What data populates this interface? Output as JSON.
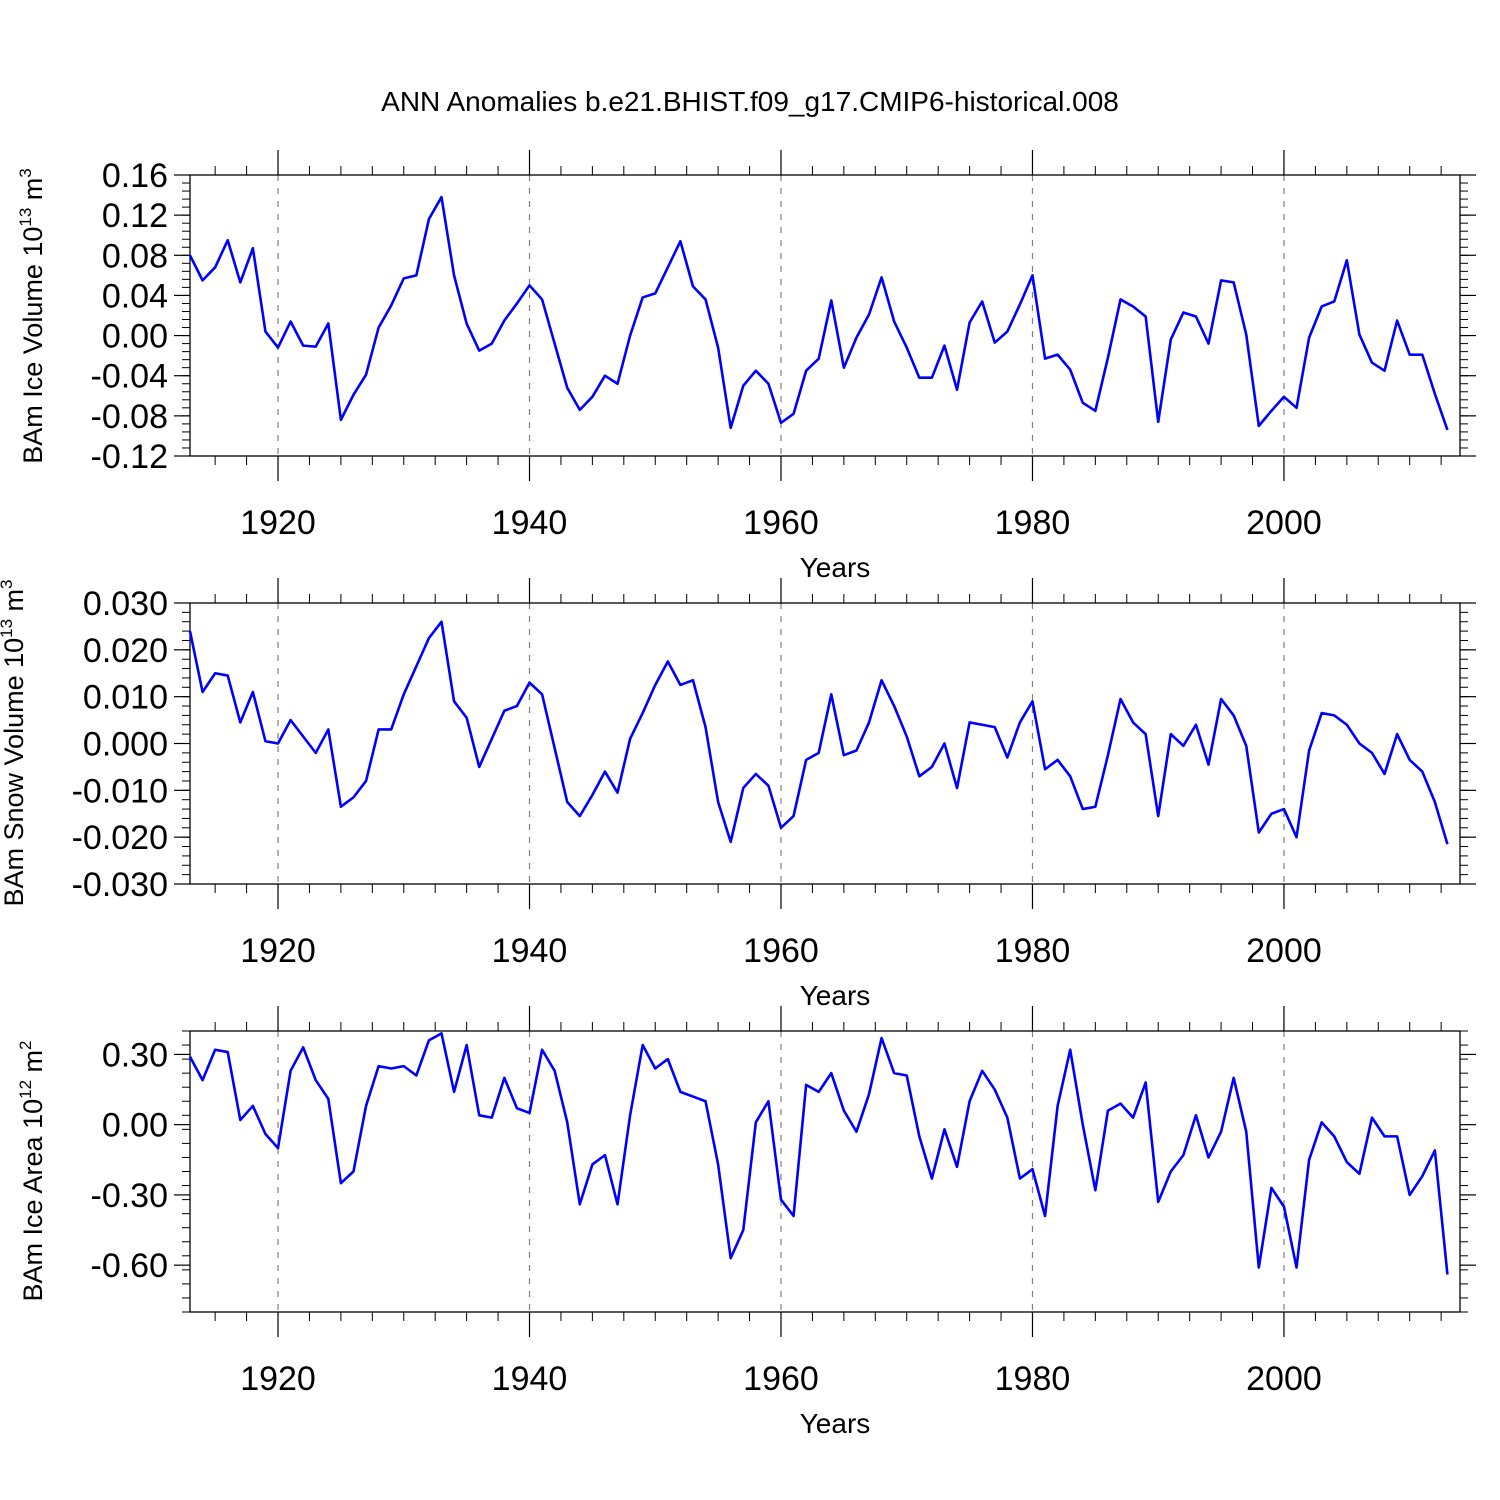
{
  "figure_title": "ANN Anomalies b.e21.BHIST.f09_g17.CMIP6-historical.008",
  "colors": {
    "line": "#0000ff",
    "axes": "#000000",
    "grid": "#808080"
  },
  "chart_data": [
    {
      "type": "line",
      "ylabel": {
        "text": "BAm Ice Volume 10",
        "exponent": "13",
        "unit": " m",
        "unit_exponent": "3"
      },
      "xlabel": "Years",
      "xlim": [
        1913,
        2014
      ],
      "ylim": [
        -0.12,
        0.16
      ],
      "xticks": [
        1920,
        1940,
        1960,
        1980,
        2000
      ],
      "xtick_labels": [
        "1920",
        "1940",
        "1960",
        "1980",
        "2000"
      ],
      "yticks": [
        -0.12,
        -0.08,
        -0.04,
        0.0,
        0.04,
        0.08,
        0.12,
        0.16
      ],
      "ytick_labels": [
        "-0.12",
        "-0.08",
        "-0.04",
        "0.00",
        "0.04",
        "0.08",
        "0.12",
        "0.16"
      ],
      "vgrid": [
        1920,
        1940,
        1960,
        1980,
        2000
      ],
      "x_start": 1913,
      "series": [
        {
          "name": "Ice Volume",
          "values": [
            0.08,
            0.055,
            0.068,
            0.095,
            0.053,
            0.087,
            0.004,
            -0.012,
            0.014,
            -0.01,
            -0.011,
            0.012,
            -0.084,
            -0.059,
            -0.039,
            0.008,
            0.03,
            0.057,
            0.06,
            0.116,
            0.138,
            0.06,
            0.012,
            -0.015,
            -0.008,
            0.015,
            0.032,
            0.05,
            0.036,
            -0.008,
            -0.052,
            -0.074,
            -0.061,
            -0.04,
            -0.048,
            0.0,
            0.038,
            0.042,
            0.068,
            0.094,
            0.049,
            0.036,
            -0.012,
            -0.092,
            -0.05,
            -0.035,
            -0.048,
            -0.087,
            -0.078,
            -0.035,
            -0.023,
            0.035,
            -0.032,
            -0.002,
            0.021,
            0.058,
            0.014,
            -0.012,
            -0.042,
            -0.042,
            -0.01,
            -0.054,
            0.013,
            0.034,
            -0.007,
            0.004,
            0.031,
            0.06,
            -0.023,
            -0.019,
            -0.034,
            -0.067,
            -0.075,
            -0.022,
            0.036,
            0.029,
            0.019,
            -0.086,
            -0.004,
            0.023,
            0.019,
            -0.008,
            0.055,
            0.053,
            0.001,
            -0.09,
            -0.075,
            -0.061,
            -0.072,
            -0.002,
            0.029,
            0.034,
            0.075,
            0.001,
            -0.027,
            -0.035,
            0.015,
            -0.019,
            -0.019,
            -0.058,
            -0.094
          ]
        }
      ]
    },
    {
      "type": "line",
      "ylabel": {
        "text": "BAm Snow Volume 10",
        "exponent": "13",
        "unit": " m",
        "unit_exponent": "3"
      },
      "xlabel": "Years",
      "xlim": [
        1913,
        2014
      ],
      "ylim": [
        -0.03,
        0.03
      ],
      "xticks": [
        1920,
        1940,
        1960,
        1980,
        2000
      ],
      "xtick_labels": [
        "1920",
        "1940",
        "1960",
        "1980",
        "2000"
      ],
      "yticks": [
        -0.03,
        -0.02,
        -0.01,
        0.0,
        0.01,
        0.02,
        0.03
      ],
      "ytick_labels": [
        "-0.030",
        "-0.020",
        "-0.010",
        "0.000",
        "0.010",
        "0.020",
        "0.030"
      ],
      "vgrid": [
        1920,
        1940,
        1960,
        1980,
        2000
      ],
      "x_start": 1913,
      "series": [
        {
          "name": "Snow Volume",
          "values": [
            0.024,
            0.011,
            0.015,
            0.0145,
            0.0045,
            0.011,
            0.0005,
            0.0,
            0.005,
            0.0015,
            -0.002,
            0.003,
            -0.0135,
            -0.0115,
            -0.008,
            0.003,
            0.003,
            0.0105,
            0.0165,
            0.0225,
            0.026,
            0.009,
            0.0055,
            -0.005,
            0.001,
            0.007,
            0.008,
            0.013,
            0.0105,
            -0.001,
            -0.0125,
            -0.0155,
            -0.011,
            -0.006,
            -0.0105,
            0.001,
            0.0065,
            0.0125,
            0.0175,
            0.0125,
            0.0135,
            0.0035,
            -0.0125,
            -0.021,
            -0.0095,
            -0.0065,
            -0.009,
            -0.018,
            -0.0155,
            -0.0035,
            -0.002,
            0.0105,
            -0.0025,
            -0.0015,
            0.0045,
            0.0135,
            0.008,
            0.0015,
            -0.007,
            -0.005,
            0.0,
            -0.0095,
            0.0045,
            0.004,
            0.0035,
            -0.003,
            0.0045,
            0.009,
            -0.0055,
            -0.0035,
            -0.007,
            -0.014,
            -0.0135,
            -0.0025,
            0.0095,
            0.0045,
            0.002,
            -0.0155,
            0.002,
            -0.0005,
            0.004,
            -0.0045,
            0.0095,
            0.006,
            -0.0005,
            -0.019,
            -0.015,
            -0.014,
            -0.02,
            -0.0015,
            0.0065,
            0.006,
            0.004,
            0.0,
            -0.002,
            -0.0065,
            0.002,
            -0.0035,
            -0.006,
            -0.0125,
            -0.0215
          ]
        }
      ]
    },
    {
      "type": "line",
      "ylabel": {
        "text": "BAm Ice Area 10",
        "exponent": "12",
        "unit": " m",
        "unit_exponent": "2"
      },
      "xlabel": "Years",
      "xlim": [
        1913,
        2014
      ],
      "ylim": [
        -0.8,
        0.4
      ],
      "xticks": [
        1920,
        1940,
        1960,
        1980,
        2000
      ],
      "xtick_labels": [
        "1920",
        "1940",
        "1960",
        "1980",
        "2000"
      ],
      "yticks": [
        -0.6,
        -0.3,
        0.0,
        0.3
      ],
      "ytick_labels": [
        "-0.60",
        "-0.30",
        "0.00",
        "0.30"
      ],
      "vgrid": [
        1920,
        1940,
        1960,
        1980,
        2000
      ],
      "x_start": 1913,
      "series": [
        {
          "name": "Ice Area",
          "values": [
            0.29,
            0.19,
            0.32,
            0.31,
            0.02,
            0.08,
            -0.04,
            -0.1,
            0.23,
            0.33,
            0.19,
            0.11,
            -0.25,
            -0.2,
            0.08,
            0.25,
            0.24,
            0.25,
            0.21,
            0.36,
            0.39,
            0.14,
            0.34,
            0.04,
            0.03,
            0.2,
            0.07,
            0.05,
            0.32,
            0.23,
            0.01,
            -0.34,
            -0.17,
            -0.13,
            -0.34,
            0.04,
            0.34,
            0.24,
            0.28,
            0.14,
            0.12,
            0.1,
            -0.17,
            -0.57,
            -0.45,
            0.01,
            0.1,
            -0.32,
            -0.39,
            0.17,
            0.14,
            0.22,
            0.06,
            -0.03,
            0.13,
            0.37,
            0.22,
            0.21,
            -0.05,
            -0.23,
            -0.02,
            -0.18,
            0.1,
            0.23,
            0.15,
            0.03,
            -0.23,
            -0.19,
            -0.39,
            0.08,
            0.32,
            0.0,
            -0.28,
            0.06,
            0.09,
            0.03,
            0.18,
            -0.33,
            -0.2,
            -0.13,
            0.04,
            -0.14,
            -0.03,
            0.2,
            -0.03,
            -0.61,
            -0.27,
            -0.35,
            -0.61,
            -0.15,
            0.01,
            -0.05,
            -0.16,
            -0.21,
            0.03,
            -0.05,
            -0.05,
            -0.3,
            -0.22,
            -0.11,
            -0.64
          ]
        }
      ]
    }
  ]
}
